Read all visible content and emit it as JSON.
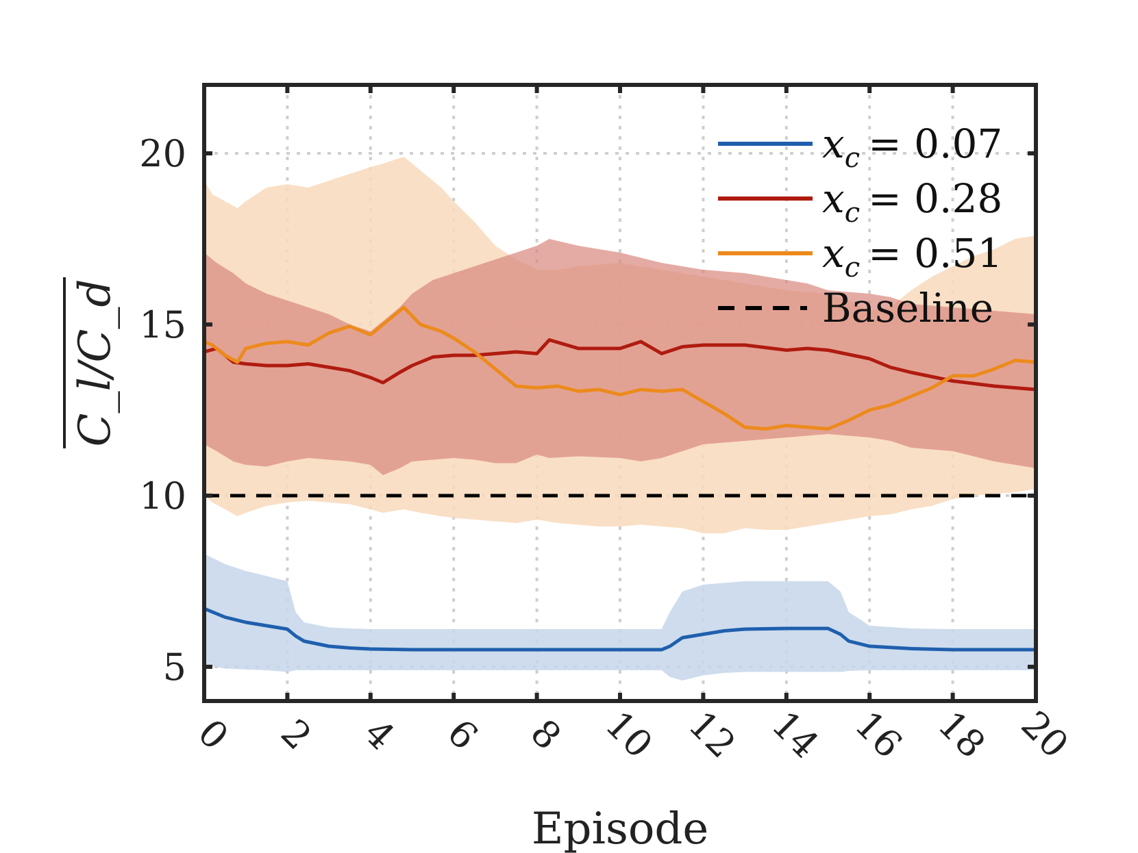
{
  "chart_data": {
    "type": "line",
    "title": "",
    "xlabel": "Episode",
    "ylabel": "C_l/C_d",
    "xlim": [
      0,
      20
    ],
    "ylim": [
      4,
      22
    ],
    "xticks": [
      "0",
      "2",
      "4",
      "6",
      "8",
      "10",
      "12",
      "14",
      "16",
      "18",
      "20"
    ],
    "yticks": [
      "5",
      "10",
      "15",
      "20"
    ],
    "grid": true,
    "legend_position": "top-right",
    "series": [
      {
        "name": "x_c = 0.07",
        "color": "#1f5fad",
        "band_color": "#c6d6ea",
        "x": [
          0,
          0.5,
          1,
          1.5,
          2,
          2.2,
          2.4,
          3,
          3.5,
          4,
          5,
          6,
          7,
          8,
          9,
          10,
          11,
          11.2,
          11.5,
          12,
          12.5,
          13,
          14,
          15,
          15.3,
          15.5,
          16,
          17,
          18,
          19,
          20
        ],
        "mean": [
          6.7,
          6.45,
          6.3,
          6.2,
          6.1,
          5.9,
          5.75,
          5.6,
          5.55,
          5.52,
          5.5,
          5.5,
          5.5,
          5.5,
          5.5,
          5.5,
          5.5,
          5.6,
          5.85,
          5.95,
          6.05,
          6.1,
          6.12,
          6.12,
          5.95,
          5.75,
          5.6,
          5.53,
          5.5,
          5.5,
          5.5
        ],
        "upper": [
          8.3,
          8.0,
          7.8,
          7.65,
          7.5,
          6.6,
          6.3,
          6.15,
          6.12,
          6.1,
          6.1,
          6.1,
          6.1,
          6.1,
          6.1,
          6.1,
          6.1,
          6.6,
          7.2,
          7.4,
          7.45,
          7.5,
          7.5,
          7.5,
          7.2,
          6.6,
          6.2,
          6.12,
          6.1,
          6.1,
          6.1
        ],
        "lower": [
          5.05,
          4.95,
          4.92,
          4.9,
          4.85,
          4.9,
          4.9,
          4.9,
          4.9,
          4.9,
          4.9,
          4.9,
          4.9,
          4.9,
          4.9,
          4.9,
          4.9,
          4.7,
          4.6,
          4.75,
          4.82,
          4.85,
          4.85,
          4.85,
          4.85,
          4.88,
          4.9,
          4.9,
          4.9,
          4.9,
          4.9
        ]
      },
      {
        "name": "x_c = 0.28",
        "color": "#b01b10",
        "band_color": "#d9877e",
        "x": [
          0,
          0.3,
          0.7,
          1,
          1.5,
          2,
          2.5,
          3,
          3.5,
          4,
          4.3,
          4.7,
          5,
          5.5,
          6,
          6.5,
          7,
          7.5,
          8,
          8.3,
          9,
          10,
          10.5,
          11,
          11.5,
          12,
          13,
          14,
          14.5,
          15,
          16,
          16.5,
          17,
          18,
          19,
          20
        ],
        "mean": [
          14.2,
          14.3,
          13.9,
          13.85,
          13.8,
          13.8,
          13.85,
          13.75,
          13.65,
          13.45,
          13.3,
          13.6,
          13.8,
          14.05,
          14.1,
          14.1,
          14.15,
          14.2,
          14.15,
          14.55,
          14.3,
          14.3,
          14.5,
          14.15,
          14.35,
          14.4,
          14.4,
          14.25,
          14.3,
          14.25,
          14.0,
          13.75,
          13.6,
          13.35,
          13.2,
          13.1
        ],
        "upper": [
          17.1,
          16.8,
          16.5,
          16.2,
          15.9,
          15.7,
          15.5,
          15.3,
          15.0,
          14.8,
          15.1,
          15.5,
          15.9,
          16.3,
          16.5,
          16.7,
          16.9,
          17.1,
          17.3,
          17.5,
          17.3,
          17.1,
          16.95,
          16.8,
          16.7,
          16.6,
          16.5,
          16.3,
          16.2,
          16.0,
          15.9,
          15.8,
          15.6,
          15.5,
          15.4,
          15.3
        ],
        "lower": [
          11.5,
          11.3,
          11.0,
          10.9,
          10.85,
          11.0,
          11.1,
          11.05,
          11.0,
          10.9,
          10.6,
          10.8,
          11.0,
          11.05,
          11.1,
          11.05,
          10.95,
          10.95,
          11.2,
          11.1,
          11.15,
          11.1,
          11.0,
          11.1,
          11.3,
          11.5,
          11.6,
          11.7,
          11.75,
          11.8,
          11.7,
          11.6,
          11.4,
          11.3,
          11.0,
          10.8
        ]
      },
      {
        "name": "x_c = 0.51",
        "color": "#ec8a1c",
        "band_color": "#f8d9bb",
        "x": [
          0,
          0.2,
          0.5,
          0.8,
          1,
          1.5,
          2,
          2.5,
          3,
          3.5,
          4,
          4.3,
          4.8,
          5.2,
          5.7,
          6,
          6.5,
          7,
          7.5,
          8,
          8.5,
          9,
          9.5,
          10,
          10.5,
          11,
          11.5,
          12,
          12.5,
          13,
          13.5,
          14,
          14.5,
          15,
          15.5,
          16,
          16.5,
          17,
          17.5,
          18,
          18.5,
          19,
          19.5,
          20
        ],
        "mean": [
          14.5,
          14.4,
          14.1,
          13.9,
          14.3,
          14.45,
          14.5,
          14.4,
          14.75,
          14.95,
          14.7,
          15.0,
          15.5,
          15.0,
          14.8,
          14.6,
          14.2,
          13.7,
          13.2,
          13.15,
          13.2,
          13.05,
          13.1,
          12.95,
          13.1,
          13.05,
          13.1,
          12.75,
          12.4,
          12.0,
          11.95,
          12.05,
          12.0,
          11.95,
          12.2,
          12.5,
          12.65,
          12.9,
          13.15,
          13.5,
          13.5,
          13.7,
          13.95,
          13.9
        ],
        "upper": [
          19.2,
          18.8,
          18.6,
          18.4,
          18.6,
          19.0,
          19.1,
          19.0,
          19.2,
          19.4,
          19.6,
          19.7,
          19.9,
          19.5,
          19.0,
          18.6,
          18.0,
          17.3,
          16.9,
          16.6,
          16.6,
          16.7,
          16.75,
          16.8,
          16.7,
          16.6,
          16.5,
          16.4,
          16.3,
          16.2,
          16.1,
          16.0,
          15.95,
          15.9,
          15.7,
          15.4,
          15.5,
          16.0,
          16.4,
          16.7,
          17.0,
          17.2,
          17.5,
          17.6
        ],
        "lower": [
          10.0,
          9.8,
          9.6,
          9.4,
          9.5,
          9.7,
          9.8,
          9.85,
          9.8,
          9.75,
          9.6,
          9.5,
          9.6,
          9.5,
          9.4,
          9.35,
          9.3,
          9.25,
          9.2,
          9.3,
          9.2,
          9.15,
          9.1,
          9.1,
          9.15,
          9.1,
          9.05,
          8.9,
          8.9,
          9.05,
          9.0,
          9.0,
          9.1,
          9.2,
          9.3,
          9.4,
          9.45,
          9.6,
          9.7,
          9.9,
          10.0,
          10.05,
          10.1,
          10.2
        ]
      },
      {
        "name": "Baseline",
        "color": "#000000",
        "dash": true,
        "x": [
          0,
          20
        ],
        "mean": [
          10.0,
          10.0
        ]
      }
    ],
    "legend": [
      {
        "math_var": "x",
        "math_sub": "c",
        "value": "= 0.07",
        "color": "#1f5fad",
        "dash": false
      },
      {
        "math_var": "x",
        "math_sub": "c",
        "value": "= 0.28",
        "color": "#b01b10",
        "dash": false
      },
      {
        "math_var": "x",
        "math_sub": "c",
        "value": "= 0.51",
        "color": "#ec8a1c",
        "dash": false
      },
      {
        "math_var": "",
        "math_sub": "",
        "value": "Baseline",
        "color": "#000000",
        "dash": true
      }
    ]
  }
}
